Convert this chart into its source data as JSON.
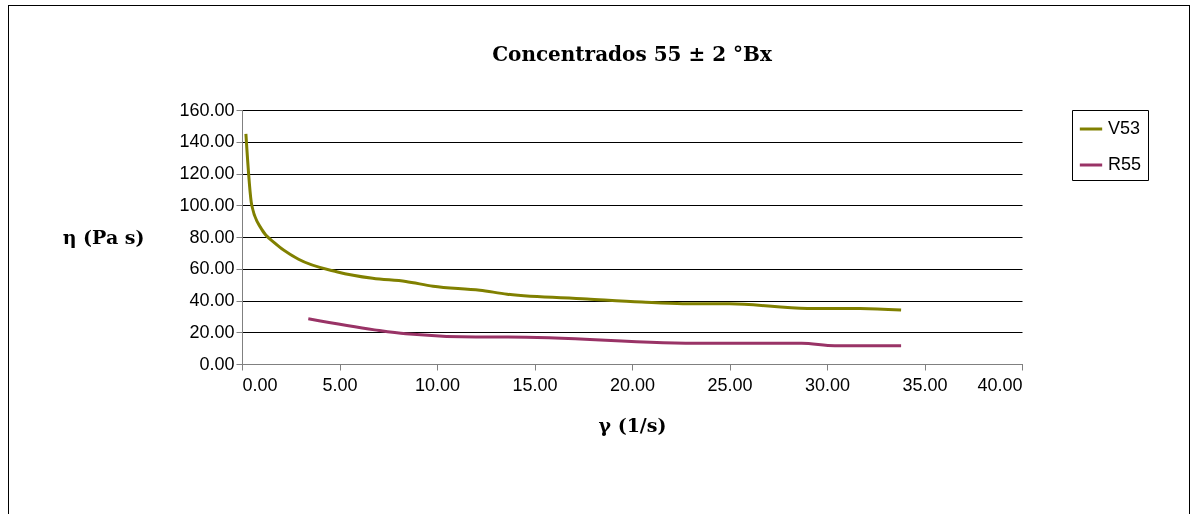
{
  "chart_data": {
    "type": "line",
    "title": "Concentrados 55 ± 2 °Bx",
    "xlabel": "γ (1/s)",
    "ylabel": "η (Pa s)",
    "xlim": [
      0,
      40
    ],
    "xticks": [
      {
        "value": 0,
        "label": "0.00"
      },
      {
        "value": 5,
        "label": "5.00"
      },
      {
        "value": 10,
        "label": "10.00"
      },
      {
        "value": 15,
        "label": "15.00"
      },
      {
        "value": 20,
        "label": "20.00"
      },
      {
        "value": 25,
        "label": "25.00"
      },
      {
        "value": 30,
        "label": "30.00"
      },
      {
        "value": 35,
        "label": "35.00"
      },
      {
        "value": 40,
        "label": "40.00"
      }
    ],
    "ylim": [
      0,
      160
    ],
    "yticks": [
      {
        "value": 0,
        "label": "0.00"
      },
      {
        "value": 20,
        "label": "20.00"
      },
      {
        "value": 40,
        "label": "40.00"
      },
      {
        "value": 60,
        "label": "60.00"
      },
      {
        "value": 80,
        "label": "80.00"
      },
      {
        "value": 100,
        "label": "100.00"
      },
      {
        "value": 120,
        "label": "120.00"
      },
      {
        "value": 140,
        "label": "140.00"
      },
      {
        "value": 160,
        "label": "160.00"
      }
    ],
    "grid": "y",
    "legend": "right",
    "marker": "none",
    "line_style": "solid",
    "series": [
      {
        "name": "V53",
        "color": "#808000",
        "x": [
          0.2,
          0.5,
          1,
          1.7,
          2.9,
          4.9,
          6.7,
          8.4,
          9.8,
          12.2,
          13.6,
          17.7,
          20.5,
          22.6,
          25,
          29,
          31.7,
          33.8
        ],
        "values": [
          145,
          100,
          85,
          76,
          66,
          58,
          54,
          52,
          49,
          46.5,
          44,
          41,
          39,
          38,
          38,
          35,
          35,
          34
        ]
      },
      {
        "name": "R55",
        "color": "#993366",
        "x": [
          3.4,
          6.8,
          8.4,
          12,
          13.6,
          23.7,
          28.7,
          30.4,
          33.8
        ],
        "values": [
          28.5,
          21.5,
          19,
          17,
          17,
          13,
          13,
          11.5,
          11.5
        ]
      }
    ]
  }
}
